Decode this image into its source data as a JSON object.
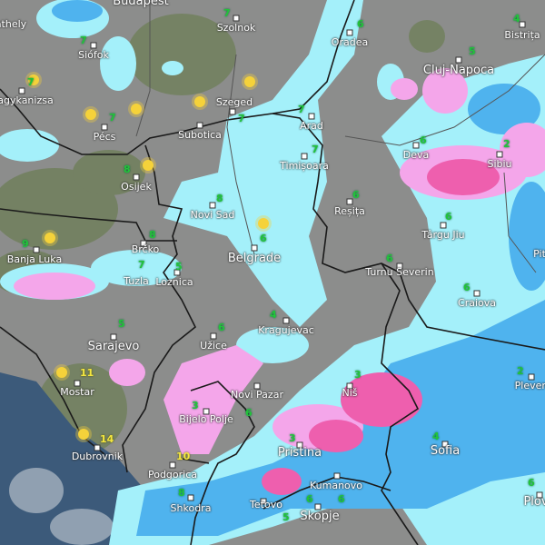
{
  "map": {
    "type": "weather-precipitation-map",
    "colors": {
      "land": "#8c8d8c",
      "forest": "#6f7f5a",
      "sea": "#3c5a7a",
      "light_precip": "#a4f0fa",
      "moderate_precip": "#4fb3ee",
      "heavy_precip": "#2a86e0",
      "snow": "#f4a6ea",
      "heavy_snow": "#ee5fae",
      "border": "#1a1a1a",
      "temp_text": "#22c33a",
      "warm_temp_text": "#f4e640"
    },
    "cities": [
      "Budapest",
      "Szolnok",
      "Oradea",
      "Bistrița",
      "athely",
      "Siófok",
      "Cluj-Napoca",
      "agykanizsa",
      "Szeged",
      "Arad",
      "Pécs",
      "Subotica",
      "Deva",
      "Sibiu",
      "Timișoara",
      "Osijek",
      "Reșița",
      "Novi Sad",
      "Târgu Jiu",
      "Brčko",
      "Banja Luka",
      "Belgrade",
      "Turnu Severin",
      "Tuzla",
      "Loznica",
      "Craiova",
      "Pit",
      "Sarajevo",
      "Kragujevac",
      "Užice",
      "Mostar",
      "Novi Pazar",
      "Niš",
      "Pleven",
      "Bijelo Polje",
      "Pristina",
      "Sofia",
      "Dubrovnik",
      "Podgorica",
      "Kumanovo",
      "Shkodra",
      "Tetovo",
      "Skopje",
      "Plov"
    ],
    "temperatures": [
      "7",
      "6",
      "4",
      "7",
      "5",
      "7",
      "7",
      "7",
      "7",
      "6",
      "2",
      "7",
      "8",
      "6",
      "8",
      "9",
      "8",
      "6",
      "6",
      "6",
      "7",
      "5",
      "5",
      "6",
      "6",
      "4",
      "3",
      "3",
      "6",
      "2",
      "3",
      "4",
      "6",
      "6",
      "8",
      "5",
      "6"
    ],
    "warm_temperatures": [
      "11",
      "14",
      "10"
    ],
    "sun_icon": "sun-icon"
  }
}
